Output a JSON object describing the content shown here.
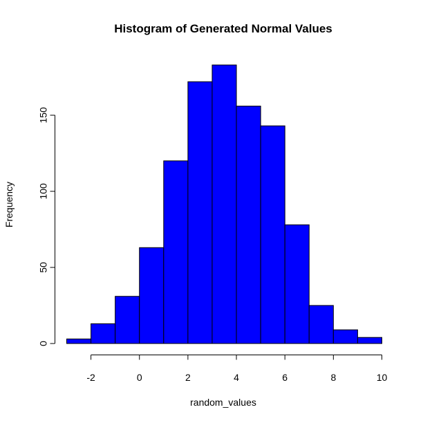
{
  "chart_data": {
    "type": "bar",
    "title": "Histogram of Generated Normal Values",
    "xlabel": "random_values",
    "ylabel": "Frequency",
    "bin_edges": [
      -3,
      -2,
      -1,
      0,
      1,
      2,
      3,
      4,
      5,
      6,
      7,
      8,
      9,
      10
    ],
    "values": [
      3,
      13,
      31,
      63,
      120,
      172,
      183,
      156,
      143,
      78,
      25,
      9,
      4
    ],
    "xlim": [
      -3,
      10
    ],
    "ylim": [
      0,
      183
    ],
    "x_ticks": [
      -2,
      0,
      2,
      4,
      6,
      8,
      10
    ],
    "y_ticks": [
      0,
      50,
      100,
      150
    ],
    "bar_color": "#0000FF",
    "grid": false,
    "legend": "none"
  }
}
